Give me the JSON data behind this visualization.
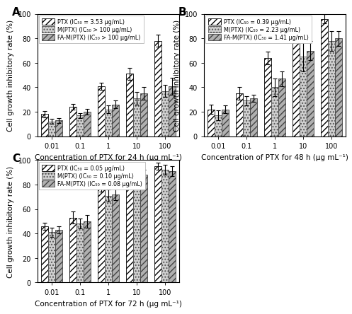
{
  "panels": [
    {
      "label": "A",
      "xlabel": "Concentration of PTX for 24 h (μg mL⁻¹)",
      "legend": [
        "PTX (IC₅₀ = 3.53 μg/mL)",
        "M(PTX) (IC₅₀ > 100 μg/mL)",
        "FA-M(PTX) (IC₅₀ > 100 μg/mL)"
      ],
      "values": [
        [
          18,
          24,
          41,
          51,
          78
        ],
        [
          12,
          17,
          22,
          31,
          37
        ],
        [
          13,
          20,
          26,
          35,
          41
        ]
      ],
      "errors": [
        [
          2.5,
          2.5,
          3.0,
          5.0,
          5.0
        ],
        [
          2.0,
          2.0,
          3.0,
          5.0,
          5.0
        ],
        [
          2.0,
          2.5,
          3.0,
          5.0,
          7.0
        ]
      ]
    },
    {
      "label": "B",
      "xlabel": "Concentration of PTX for 48 h (μg mL⁻¹)",
      "legend": [
        "PTX (IC₅₀ = 0.39 μg/mL)",
        "M(PTX) (IC₅₀ = 2.23 μg/mL)",
        "FA-M(PTX) (IC₅₀ = 1.41 μg/mL)"
      ],
      "values": [
        [
          22,
          35,
          64,
          83,
          96
        ],
        [
          17,
          29,
          40,
          65,
          78
        ],
        [
          22,
          31,
          47,
          70,
          80
        ]
      ],
      "errors": [
        [
          4.0,
          5.0,
          5.0,
          5.0,
          4.0
        ],
        [
          4.0,
          4.0,
          7.0,
          12.0,
          8.0
        ],
        [
          3.0,
          3.0,
          6.0,
          8.0,
          6.0
        ]
      ]
    },
    {
      "label": "C",
      "xlabel": "Concentration of PTX for 72 h (μg mL⁻¹)",
      "legend": [
        "PTX (IC₅₀ = 0.05 μg/mL)",
        "M(PTX) (IC₅₀ = 0.10 μg/mL)",
        "FA-M(PTX) (IC₅₀ = 0.08 μg/mL)"
      ],
      "values": [
        [
          46,
          53,
          78,
          94,
          95
        ],
        [
          41,
          48,
          71,
          90,
          92
        ],
        [
          43,
          50,
          72,
          88,
          91
        ]
      ],
      "errors": [
        [
          3.0,
          5.0,
          4.0,
          3.0,
          3.0
        ],
        [
          4.0,
          4.0,
          5.0,
          4.0,
          4.0
        ],
        [
          3.0,
          5.0,
          5.0,
          4.0,
          4.0
        ]
      ]
    }
  ],
  "ylabel": "Cell growth inhibitory rate (%)",
  "xtick_labels": [
    "0.01",
    "0.1",
    "1",
    "10",
    "100"
  ],
  "ylim": [
    0,
    100
  ],
  "yticks": [
    0,
    20,
    40,
    60,
    80,
    100
  ],
  "bar_width": 0.25,
  "face_colors": [
    "#ffffff",
    "#d0d0d0",
    "#b0b0b0"
  ],
  "edge_colors": [
    "#000000",
    "#555555",
    "#444444"
  ],
  "hatch_styles": [
    "////",
    "....",
    "////"
  ],
  "hatch_colors": [
    "#000000",
    "#888888",
    "#666666"
  ]
}
